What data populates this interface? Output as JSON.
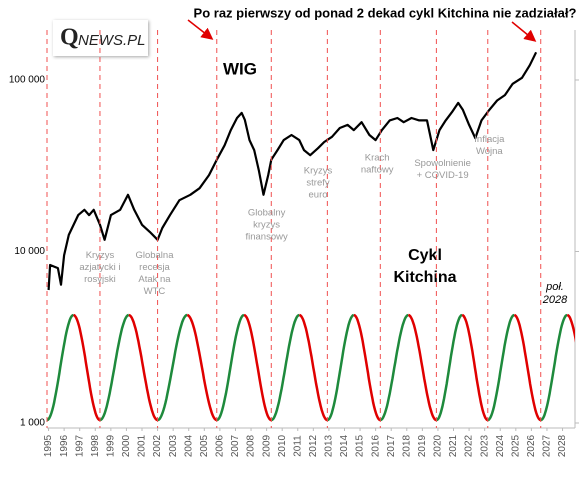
{
  "chart_data": {
    "type": "line",
    "title": "Po raz pierwszy od ponad 2 dekad cykl Kitchina nie zadziałał?",
    "logo": {
      "q": "Q",
      "rest": "NEWS.PL"
    },
    "series_label": "WIG",
    "cycle_label": [
      "Cykl",
      "Kitchina"
    ],
    "forecast_label": [
      "poł.",
      "2028"
    ],
    "x": [
      1995.0,
      1995.1,
      1995.6,
      1995.8,
      1996.0,
      1996.3,
      1996.9,
      1997.3,
      1997.6,
      1997.9,
      1998.3,
      1998.6,
      1999.0,
      1999.6,
      2000.1,
      2000.5,
      2001.0,
      2001.5,
      2002.0,
      2002.3,
      2002.8,
      2003.4,
      2004.1,
      2004.7,
      2005.3,
      2005.8,
      2006.3,
      2006.7,
      2007.1,
      2007.4,
      2007.6,
      2007.9,
      2008.2,
      2008.5,
      2008.8,
      2009.1,
      2009.3,
      2009.7,
      2010.1,
      2010.6,
      2011.1,
      2011.4,
      2011.8,
      2012.3,
      2012.7,
      2013.2,
      2013.7,
      2014.2,
      2014.6,
      2015.1,
      2015.6,
      2016.0,
      2016.4,
      2016.9,
      2017.4,
      2017.8,
      2018.3,
      2018.8,
      2019.3,
      2019.7,
      2020.1,
      2020.5,
      2020.9,
      2021.3,
      2021.6,
      2022.0,
      2022.4,
      2022.8,
      2023.3,
      2023.8,
      2024.3,
      2024.8,
      2025.4,
      2025.9,
      2026.3
    ],
    "series": [
      {
        "name": "WIG",
        "color": "#000000",
        "values": [
          5960,
          8340,
          8000,
          6400,
          9500,
          12500,
          16300,
          17500,
          16300,
          17500,
          14300,
          11700,
          16300,
          17500,
          21400,
          17500,
          14300,
          13000,
          11700,
          13700,
          16300,
          19900,
          21400,
          23400,
          27900,
          34300,
          41600,
          51000,
          60000,
          64300,
          58600,
          44600,
          39000,
          29800,
          21400,
          27900,
          34300,
          39000,
          44600,
          47800,
          44600,
          39000,
          36400,
          40000,
          43500,
          46600,
          52500,
          54700,
          51000,
          56700,
          47800,
          44600,
          51000,
          58100,
          60000,
          56700,
          60000,
          58100,
          58100,
          39000,
          51000,
          58100,
          65000,
          73500,
          66900,
          54700,
          45800,
          58100,
          66900,
          75900,
          81600,
          95000,
          103000,
          122000,
          145000
        ]
      }
    ],
    "kitchin_cycle": {
      "troughs": [
        1994.9,
        1998.3,
        2002.0,
        2005.8,
        2009.3,
        2012.9,
        2016.3,
        2019.9,
        2023.2,
        2026.6,
        2030.0
      ],
      "trough": 1040,
      "peak": 4260,
      "rise_color": "#1e8a3c",
      "fall_color": "#e00000",
      "line_color": "#f05050"
    },
    "annotations": [
      {
        "x": 1998.3,
        "y": 9500,
        "lines": [
          "Kryzys",
          "azjatycki i",
          "rosyjski"
        ]
      },
      {
        "x": 2001.8,
        "y": 9500,
        "lines": [
          "Globalna",
          "recesja",
          "Atak na",
          "WTC"
        ]
      },
      {
        "x": 2009.0,
        "y": 16800,
        "lines": [
          "Globalny",
          "kryzys",
          "finansowy"
        ]
      },
      {
        "x": 2012.3,
        "y": 29500,
        "lines": [
          "Kryzys",
          "strefy",
          "euro"
        ]
      },
      {
        "x": 2016.1,
        "y": 35000,
        "lines": [
          "Krach",
          "naftowy"
        ]
      },
      {
        "x": 2020.3,
        "y": 32500,
        "lines": [
          "Spowolnienie",
          "+ COVID-19"
        ]
      },
      {
        "x": 2023.3,
        "y": 45000,
        "lines": [
          "Inflacja",
          "Wojna"
        ]
      }
    ],
    "xlim": [
      1994.9,
      2028.8
    ],
    "ylim": [
      935,
      195600
    ],
    "log_y": true,
    "xticks": [
      1995,
      1996,
      1997,
      1998,
      1999,
      2000,
      2001,
      2002,
      2003,
      2004,
      2005,
      2006,
      2007,
      2008,
      2009,
      2010,
      2011,
      2012,
      2013,
      2014,
      2015,
      2016,
      2017,
      2018,
      2019,
      2020,
      2021,
      2022,
      2023,
      2024,
      2025,
      2026,
      2027,
      2028
    ],
    "yticks": [
      {
        "value": 1000,
        "label": "1 000"
      },
      {
        "value": 10000,
        "label": "10 000"
      },
      {
        "value": 100000,
        "label": "100 000"
      }
    ]
  }
}
